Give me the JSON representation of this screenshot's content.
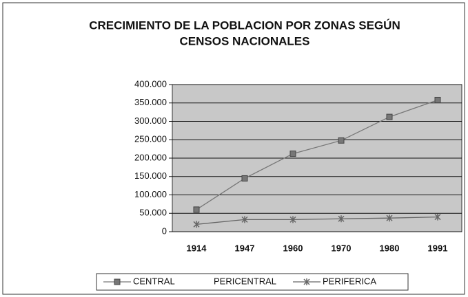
{
  "chart_data": {
    "type": "line",
    "title": "CRECIMIENTO DE LA POBLACION POR ZONAS SEGÚN",
    "subtitle": "CENSOS NACIONALES",
    "categories": [
      "1914",
      "1947",
      "1960",
      "1970",
      "1980",
      "1991"
    ],
    "series": [
      {
        "name": "CENTRAL",
        "color": "#777777",
        "marker": "square",
        "values": [
          60000,
          145000,
          212000,
          248000,
          312000,
          358000
        ]
      },
      {
        "name": "PERICENTRAL",
        "color": "#ffffff",
        "marker": "none",
        "values": [
          null,
          null,
          null,
          null,
          null,
          null
        ]
      },
      {
        "name": "PERIFERICA",
        "color": "#666666",
        "marker": "star",
        "values": [
          20000,
          33000,
          33000,
          35000,
          37000,
          40000
        ]
      }
    ],
    "ylim": [
      0,
      400000
    ],
    "yticks": [
      0,
      {
        "value": 50000,
        "label": "50.000"
      },
      {
        "value": 100000,
        "label": "100.000"
      },
      {
        "value": 150000,
        "label": "150.000"
      },
      {
        "value": 200000,
        "label": "200.000"
      },
      {
        "value": 250000,
        "label": "250.000"
      },
      {
        "value": 300000,
        "label": "300.000"
      },
      {
        "value": 350000,
        "label": "350.000"
      },
      {
        "value": 400000,
        "label": "400.000"
      }
    ],
    "grid": true,
    "legend": "bottom",
    "plot_background": "#c8c8c8"
  }
}
